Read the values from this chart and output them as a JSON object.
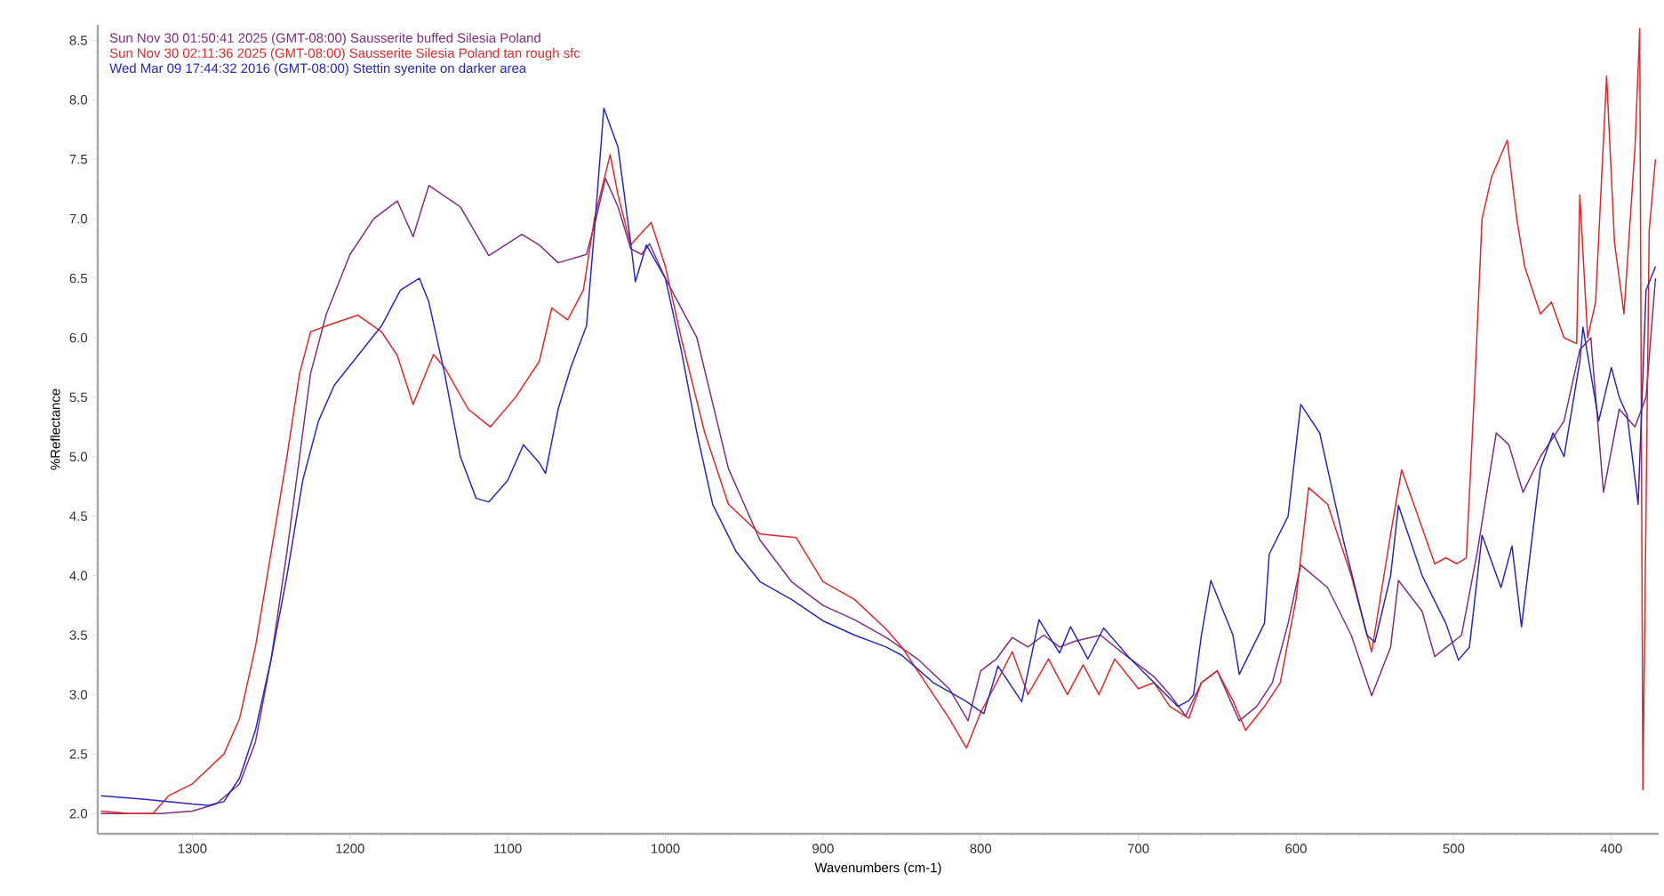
{
  "chart_data": {
    "type": "line",
    "xlabel": "Wavenumbers (cm-1)",
    "ylabel": "%Reflectance",
    "xlim": [
      1360,
      370
    ],
    "ylim": [
      1.83,
      8.63
    ],
    "xticks": [
      1300,
      1200,
      1100,
      1000,
      900,
      800,
      700,
      600,
      500,
      400
    ],
    "yticks": [
      {
        "value": 2.0,
        "label": "2.0"
      },
      {
        "value": 2.5,
        "label": "2.5"
      },
      {
        "value": 3.0,
        "label": "3.0"
      },
      {
        "value": 3.5,
        "label": "3.5"
      },
      {
        "value": 4.0,
        "label": "4.0"
      },
      {
        "value": 4.5,
        "label": "4.5"
      },
      {
        "value": 5.0,
        "label": "5.0"
      },
      {
        "value": 5.5,
        "label": "5.5"
      },
      {
        "value": 6.0,
        "label": "6.0"
      },
      {
        "value": 6.5,
        "label": "6.5"
      },
      {
        "value": 7.0,
        "label": "7.0"
      },
      {
        "value": 7.5,
        "label": "7.5"
      },
      {
        "value": 8.0,
        "label": "8.0"
      },
      {
        "value": 8.5,
        "label": "8.5"
      }
    ],
    "legend": "top left",
    "marker": "none",
    "grid": false,
    "series": [
      {
        "name": "Sun Nov 30 01:50:41 2025 (GMT-08:00) Sausserite buffed Silesia Poland",
        "color": "#7f2d80",
        "x": [
          1358,
          1320,
          1300,
          1285,
          1270,
          1260,
          1250,
          1240,
          1232,
          1225,
          1215,
          1200,
          1185,
          1170,
          1160,
          1150,
          1130,
          1112,
          1091,
          1080,
          1068,
          1050,
          1044,
          1038,
          1030,
          1022,
          1015,
          1010,
          1000,
          980,
          960,
          940,
          920,
          900,
          880,
          860,
          840,
          820,
          808,
          800,
          790,
          780,
          770,
          760,
          750,
          740,
          724,
          710,
          700,
          690,
          680,
          670,
          660,
          650,
          636,
          625,
          615,
          605,
          597,
          580,
          565,
          552,
          540,
          535,
          520,
          512,
          495,
          485,
          473,
          465,
          456,
          445,
          430,
          420,
          413,
          405,
          395,
          385,
          378,
          372
        ],
        "values": [
          2.0,
          2.0,
          2.02,
          2.08,
          2.25,
          2.6,
          3.3,
          4.2,
          5.0,
          5.7,
          6.2,
          6.7,
          7.0,
          7.15,
          6.85,
          7.28,
          7.1,
          6.69,
          6.87,
          6.78,
          6.63,
          6.7,
          7.0,
          7.34,
          7.1,
          6.75,
          6.7,
          6.79,
          6.5,
          6.0,
          4.9,
          4.3,
          3.95,
          3.75,
          3.63,
          3.48,
          3.3,
          3.05,
          2.78,
          3.2,
          3.3,
          3.48,
          3.4,
          3.5,
          3.4,
          3.45,
          3.5,
          3.35,
          3.25,
          3.15,
          3.0,
          2.82,
          3.1,
          3.2,
          2.78,
          2.9,
          3.1,
          3.6,
          4.09,
          3.9,
          3.5,
          2.99,
          3.4,
          3.96,
          3.7,
          3.32,
          3.5,
          4.2,
          5.2,
          5.1,
          4.7,
          5.0,
          5.3,
          5.9,
          6.0,
          4.7,
          5.4,
          5.25,
          5.5,
          6.5
        ]
      },
      {
        "name": "Sun Nov 30 02:11:36 2025 (GMT-08:00) Sausserite Silesia Poland tan rough sfc",
        "color": "#e02828",
        "x": [
          1358,
          1340,
          1325,
          1315,
          1300,
          1280,
          1270,
          1260,
          1250,
          1240,
          1232,
          1225,
          1215,
          1195,
          1180,
          1170,
          1160,
          1147,
          1140,
          1125,
          1111,
          1095,
          1080,
          1072,
          1062,
          1052,
          1045,
          1035,
          1030,
          1022,
          1009,
          1000,
          990,
          975,
          960,
          940,
          917,
          900,
          880,
          860,
          850,
          835,
          820,
          809,
          800,
          790,
          780,
          770,
          757,
          745,
          735,
          725,
          715,
          700,
          690,
          680,
          668,
          660,
          650,
          640,
          632,
          620,
          610,
          600,
          592,
          580,
          565,
          552,
          540,
          533,
          520,
          512,
          505,
          498,
          492,
          487,
          482,
          476,
          466,
          460,
          455,
          445,
          438,
          430,
          422,
          420,
          415,
          410,
          403,
          398,
          392,
          385,
          382,
          380,
          376,
          372
        ],
        "values": [
          2.02,
          2.0,
          2.0,
          2.15,
          2.25,
          2.5,
          2.8,
          3.4,
          4.2,
          5.0,
          5.7,
          6.05,
          6.1,
          6.19,
          6.05,
          5.85,
          5.44,
          5.86,
          5.75,
          5.4,
          5.25,
          5.5,
          5.8,
          6.25,
          6.15,
          6.4,
          7.0,
          7.54,
          7.2,
          6.78,
          6.97,
          6.6,
          6.0,
          5.2,
          4.6,
          4.35,
          4.32,
          3.95,
          3.8,
          3.55,
          3.4,
          3.1,
          2.8,
          2.55,
          2.85,
          3.1,
          3.36,
          3.0,
          3.3,
          3.0,
          3.25,
          3.0,
          3.3,
          3.05,
          3.1,
          2.9,
          2.8,
          3.1,
          3.2,
          2.95,
          2.7,
          2.9,
          3.1,
          3.8,
          4.74,
          4.6,
          4.0,
          3.36,
          4.35,
          4.89,
          4.4,
          4.1,
          4.15,
          4.1,
          4.15,
          5.5,
          7.0,
          7.35,
          7.66,
          7.0,
          6.6,
          6.2,
          6.3,
          6.0,
          5.95,
          7.2,
          6.0,
          6.3,
          8.2,
          6.8,
          6.2,
          7.6,
          8.6,
          2.2,
          6.9,
          7.5
        ]
      },
      {
        "name": "Wed Mar 09 17:44:32 2016 (GMT-08:00) Stettin syenite on darker area",
        "color": "#2828c0",
        "x": [
          1358,
          1330,
          1300,
          1290,
          1280,
          1270,
          1260,
          1250,
          1240,
          1230,
          1220,
          1210,
          1195,
          1180,
          1168,
          1156,
          1150,
          1140,
          1130,
          1120,
          1112,
          1100,
          1090,
          1080,
          1076,
          1068,
          1060,
          1050,
          1045,
          1039,
          1030,
          1022,
          1019,
          1012,
          1000,
          990,
          980,
          970,
          955,
          940,
          920,
          900,
          880,
          860,
          850,
          830,
          810,
          798,
          789,
          774,
          763,
          750,
          743,
          732,
          722,
          705,
          690,
          675,
          668,
          665,
          660,
          654,
          640,
          636,
          620,
          617,
          605,
          597,
          585,
          570,
          555,
          550,
          540,
          535,
          520,
          505,
          497,
          490,
          482,
          470,
          463,
          457,
          445,
          437,
          430,
          420,
          418,
          408,
          400,
          395,
          390,
          383,
          378,
          372
        ],
        "values": [
          2.15,
          2.12,
          2.08,
          2.07,
          2.1,
          2.3,
          2.7,
          3.3,
          4.0,
          4.8,
          5.3,
          5.6,
          5.85,
          6.1,
          6.4,
          6.5,
          6.3,
          5.7,
          5.0,
          4.65,
          4.62,
          4.8,
          5.1,
          4.95,
          4.86,
          5.4,
          5.75,
          6.1,
          6.9,
          7.93,
          7.6,
          6.8,
          6.47,
          6.78,
          6.5,
          5.9,
          5.2,
          4.6,
          4.2,
          3.95,
          3.8,
          3.62,
          3.5,
          3.4,
          3.33,
          3.1,
          2.95,
          2.84,
          3.24,
          2.94,
          3.63,
          3.35,
          3.57,
          3.3,
          3.56,
          3.3,
          3.1,
          2.9,
          2.95,
          3.0,
          3.5,
          3.96,
          3.5,
          3.17,
          3.6,
          4.18,
          4.5,
          5.44,
          5.2,
          4.3,
          3.5,
          3.44,
          4.0,
          4.59,
          4.0,
          3.6,
          3.29,
          3.4,
          4.34,
          3.9,
          4.25,
          3.57,
          4.9,
          5.2,
          5.0,
          5.8,
          6.09,
          5.3,
          5.75,
          5.5,
          5.35,
          4.6,
          6.4,
          6.6
        ]
      }
    ]
  }
}
